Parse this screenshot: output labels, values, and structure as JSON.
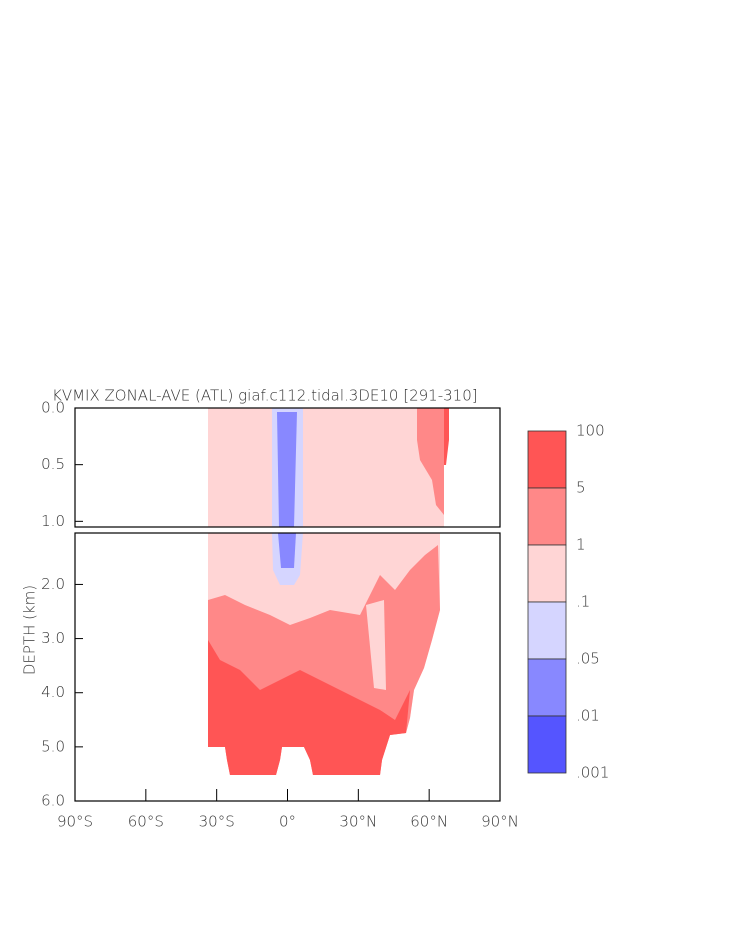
{
  "chart_data": {
    "type": "contour",
    "title": "KVMIX ZONAL-AVE (ATL) giaf.c112.tidal.3DE10 [291-310]",
    "y_label": "DEPTH (km)",
    "xlim": [
      -90,
      90
    ],
    "xticks": [
      {
        "value": -90,
        "label": "90°S"
      },
      {
        "value": -60,
        "label": "60°S"
      },
      {
        "value": -30,
        "label": "30°S"
      },
      {
        "value": 0,
        "label": "0°"
      },
      {
        "value": 30,
        "label": "30°N"
      },
      {
        "value": 60,
        "label": "60°N"
      },
      {
        "value": 90,
        "label": "90°N"
      }
    ],
    "panels": [
      {
        "ylim": [
          0,
          1.05
        ],
        "yticks": [
          {
            "value": 0,
            "label": "0.0"
          },
          {
            "value": 0.5,
            "label": "0.5"
          },
          {
            "value": 1,
            "label": "1.0"
          }
        ]
      },
      {
        "ylim": [
          1.05,
          6
        ],
        "yticks": [
          {
            "value": 2,
            "label": "2.0"
          },
          {
            "value": 3,
            "label": "3.0"
          },
          {
            "value": 4,
            "label": "4.0"
          },
          {
            "value": 5,
            "label": "5.0"
          },
          {
            "value": 6,
            "label": "6.0"
          }
        ]
      }
    ],
    "levels": [
      {
        "value": 100,
        "label": "100"
      },
      {
        "value": 5,
        "label": "5"
      },
      {
        "value": 1,
        "label": "1"
      },
      {
        "value": 0.1,
        "label": ".1"
      },
      {
        "value": 0.05,
        "label": ".05"
      },
      {
        "value": 0.01,
        "label": ".01"
      },
      {
        "value": 0.001,
        "label": ".001"
      }
    ],
    "colors": [
      "#ff5555",
      "#ff8888",
      "#ffd5d5",
      "#d5d5ff",
      "#8888ff",
      "#5555ff"
    ]
  }
}
